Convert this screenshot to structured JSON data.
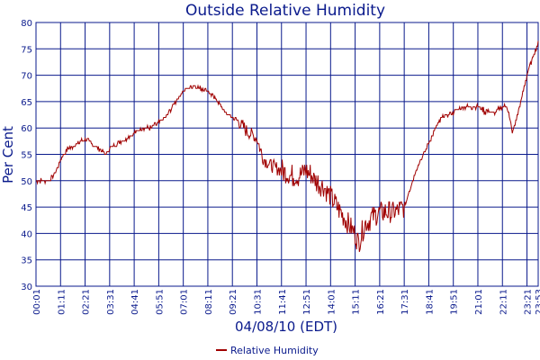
{
  "chart_data": {
    "type": "line",
    "title": "Outside Relative Humidity",
    "xlabel": "04/08/10 (EDT)",
    "ylabel": "Per Cent",
    "ylim": [
      30,
      80
    ],
    "yticks": [
      "30",
      "35",
      "40",
      "45",
      "50",
      "55",
      "60",
      "65",
      "70",
      "75",
      "80"
    ],
    "xticks": [
      "00:01",
      "01:11",
      "02:21",
      "03:31",
      "04:41",
      "05:51",
      "07:01",
      "08:11",
      "09:21",
      "10:31",
      "11:41",
      "12:51",
      "14:01",
      "15:11",
      "16:21",
      "17:31",
      "18:41",
      "19:51",
      "21:01",
      "22:11",
      "23:21",
      "23:53"
    ],
    "grid": true,
    "legend_position": "bottom-center",
    "colors": {
      "series": "#a00000",
      "grid": "#0a1a8c",
      "text": "#0a1a8c"
    },
    "series": [
      {
        "name": "Relative Humidity",
        "x": [
          "00:01",
          "00:20",
          "00:40",
          "01:00",
          "01:11",
          "01:30",
          "02:00",
          "02:21",
          "02:40",
          "03:00",
          "03:20",
          "03:31",
          "03:50",
          "04:20",
          "04:41",
          "05:00",
          "05:30",
          "05:51",
          "06:10",
          "06:30",
          "06:50",
          "07:01",
          "07:30",
          "08:11",
          "08:40",
          "09:00",
          "09:21",
          "09:40",
          "10:10",
          "10:31",
          "10:50",
          "11:10",
          "11:41",
          "12:10",
          "12:30",
          "12:51",
          "13:20",
          "13:40",
          "14:01",
          "14:20",
          "14:40",
          "15:00",
          "15:11",
          "15:20",
          "15:40",
          "16:00",
          "16:21",
          "16:40",
          "17:00",
          "17:31",
          "17:50",
          "18:10",
          "18:41",
          "19:00",
          "19:20",
          "19:51",
          "20:20",
          "20:40",
          "21:01",
          "21:30",
          "21:50",
          "22:11",
          "22:25",
          "22:40",
          "23:00",
          "23:21",
          "23:40",
          "23:53"
        ],
        "values": [
          50,
          50,
          50,
          52,
          54,
          56,
          57,
          58,
          57,
          56,
          55,
          56,
          57,
          58,
          59,
          60,
          60,
          61,
          62,
          64,
          66,
          67,
          68,
          67,
          65,
          63,
          62,
          61,
          59,
          58,
          54,
          53,
          52,
          51,
          51,
          52,
          50,
          49,
          47,
          45,
          43,
          41,
          40,
          38,
          42,
          43,
          44,
          44,
          44,
          45,
          49,
          53,
          57,
          60,
          62,
          63,
          64,
          64,
          64,
          63,
          63,
          64,
          64,
          59,
          64,
          70,
          74,
          76
        ]
      }
    ]
  }
}
